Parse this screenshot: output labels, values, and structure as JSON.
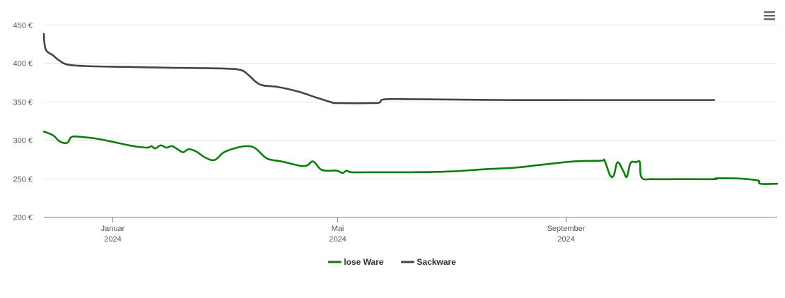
{
  "chart_data": {
    "type": "line",
    "title": "",
    "xlabel": "",
    "ylabel": "",
    "ylim": [
      200,
      450
    ],
    "yticks": [
      200,
      250,
      300,
      350,
      400,
      450
    ],
    "y_unit": "€",
    "x_range": [
      "2023-11-25",
      "2024-12-24"
    ],
    "x_ticks": [
      {
        "date": "2024-01-01",
        "label_month": "Januar",
        "label_year": "2024"
      },
      {
        "date": "2024-05-01",
        "label_month": "Mai",
        "label_year": "2024"
      },
      {
        "date": "2024-09-01",
        "label_month": "September",
        "label_year": "2024"
      }
    ],
    "grid": true,
    "legend_position": "bottom-center",
    "series": [
      {
        "name": "lose Ware",
        "color": "#0a7d0a",
        "points": [
          [
            "2023-11-25",
            311
          ],
          [
            "2023-11-30",
            306
          ],
          [
            "2023-12-03",
            299
          ],
          [
            "2023-12-06",
            296
          ],
          [
            "2023-12-08",
            297
          ],
          [
            "2023-12-10",
            304
          ],
          [
            "2023-12-15",
            304
          ],
          [
            "2023-12-25",
            301
          ],
          [
            "2024-01-10",
            293
          ],
          [
            "2024-01-15",
            291
          ],
          [
            "2024-01-20",
            290
          ],
          [
            "2024-01-22",
            292
          ],
          [
            "2024-01-24",
            289
          ],
          [
            "2024-01-27",
            293
          ],
          [
            "2024-01-30",
            290
          ],
          [
            "2024-02-02",
            292
          ],
          [
            "2024-02-05",
            288
          ],
          [
            "2024-02-08",
            284
          ],
          [
            "2024-02-11",
            288
          ],
          [
            "2024-02-15",
            285
          ],
          [
            "2024-02-20",
            277
          ],
          [
            "2024-02-25",
            274
          ],
          [
            "2024-03-01",
            284
          ],
          [
            "2024-03-08",
            290
          ],
          [
            "2024-03-14",
            292
          ],
          [
            "2024-03-18",
            289
          ],
          [
            "2024-03-22",
            280
          ],
          [
            "2024-03-25",
            275
          ],
          [
            "2024-04-01",
            272
          ],
          [
            "2024-04-08",
            268
          ],
          [
            "2024-04-12",
            266
          ],
          [
            "2024-04-15",
            267
          ],
          [
            "2024-04-18",
            272
          ],
          [
            "2024-04-22",
            262
          ],
          [
            "2024-04-25",
            260
          ],
          [
            "2024-04-28",
            260
          ],
          [
            "2024-05-01",
            260
          ],
          [
            "2024-05-04",
            257
          ],
          [
            "2024-05-06",
            260
          ],
          [
            "2024-05-09",
            258
          ],
          [
            "2024-05-20",
            258
          ],
          [
            "2024-06-10",
            258
          ],
          [
            "2024-07-01",
            259
          ],
          [
            "2024-07-20",
            262
          ],
          [
            "2024-08-05",
            264
          ],
          [
            "2024-08-20",
            268
          ],
          [
            "2024-09-05",
            272
          ],
          [
            "2024-09-20",
            273
          ],
          [
            "2024-09-22",
            273
          ],
          [
            "2024-09-25",
            254
          ],
          [
            "2024-09-27",
            254
          ],
          [
            "2024-09-29",
            271
          ],
          [
            "2024-10-02",
            260
          ],
          [
            "2024-10-04",
            252
          ],
          [
            "2024-10-06",
            270
          ],
          [
            "2024-10-09",
            271
          ],
          [
            "2024-10-11",
            271
          ],
          [
            "2024-10-12",
            251
          ],
          [
            "2024-10-18",
            249
          ],
          [
            "2024-11-01",
            249
          ],
          [
            "2024-11-20",
            249
          ],
          [
            "2024-11-21",
            250
          ],
          [
            "2024-11-30",
            250
          ],
          [
            "2024-12-08",
            249
          ],
          [
            "2024-12-14",
            247
          ],
          [
            "2024-12-15",
            243
          ],
          [
            "2024-12-24",
            243
          ]
        ]
      },
      {
        "name": "Sackware",
        "color": "#434348",
        "points": [
          [
            "2023-11-25",
            438
          ],
          [
            "2023-11-26",
            418
          ],
          [
            "2023-11-30",
            410
          ],
          [
            "2023-12-03",
            404
          ],
          [
            "2023-12-08",
            398
          ],
          [
            "2023-12-20",
            396
          ],
          [
            "2024-01-10",
            395
          ],
          [
            "2024-02-01",
            394
          ],
          [
            "2024-03-01",
            393
          ],
          [
            "2024-03-10",
            391
          ],
          [
            "2024-03-14",
            385
          ],
          [
            "2024-03-18",
            376
          ],
          [
            "2024-03-22",
            371
          ],
          [
            "2024-03-30",
            369
          ],
          [
            "2024-04-10",
            363
          ],
          [
            "2024-04-20",
            355
          ],
          [
            "2024-04-28",
            349
          ],
          [
            "2024-05-01",
            348
          ],
          [
            "2024-05-20",
            348
          ],
          [
            "2024-05-24",
            349
          ],
          [
            "2024-05-27",
            353
          ],
          [
            "2024-06-15",
            353
          ],
          [
            "2024-08-01",
            352
          ],
          [
            "2024-09-15",
            352
          ],
          [
            "2024-10-01",
            352
          ],
          [
            "2024-10-20",
            352
          ],
          [
            "2024-11-20",
            352
          ]
        ]
      }
    ]
  }
}
